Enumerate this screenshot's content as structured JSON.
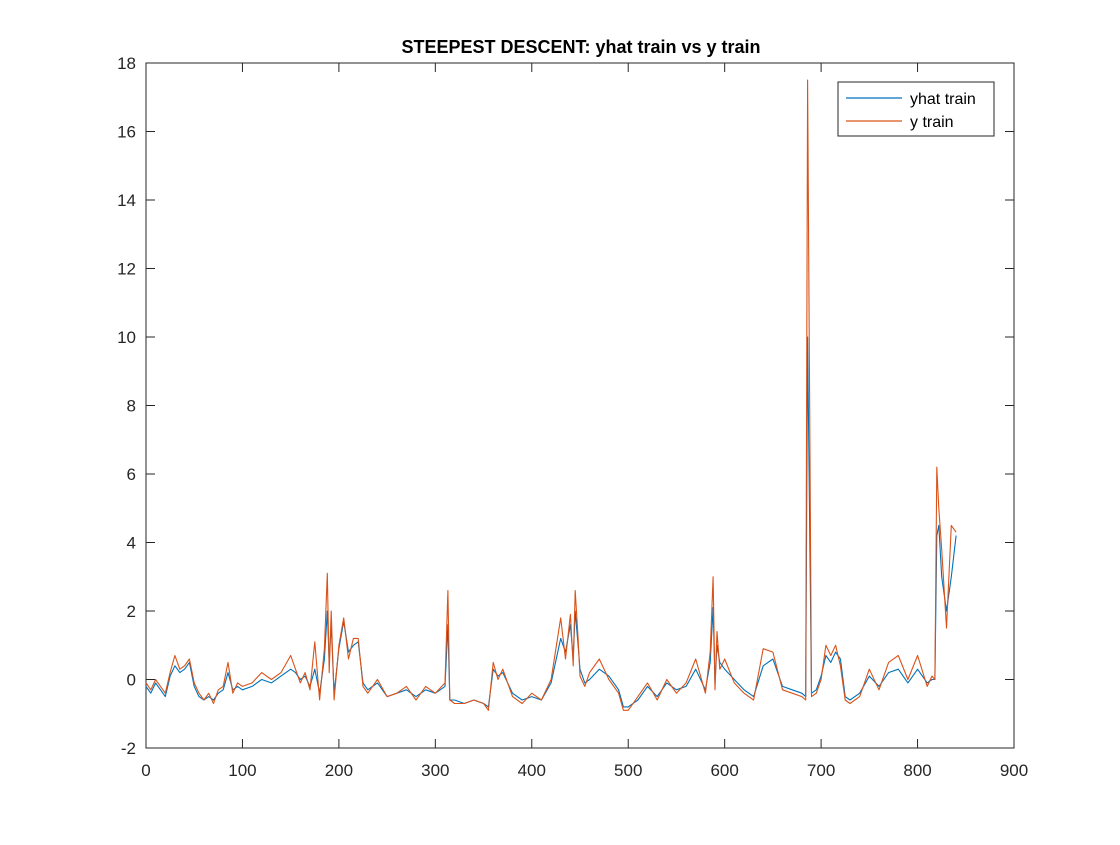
{
  "window": {
    "background": "#ffffff"
  },
  "chart_data": {
    "type": "line",
    "title": "STEEPEST DESCENT: yhat train vs y train",
    "xlabel": "",
    "ylabel": "",
    "xlim": [
      0,
      900
    ],
    "ylim": [
      -2,
      18
    ],
    "xticks": [
      0,
      100,
      200,
      300,
      400,
      500,
      600,
      700,
      800,
      900
    ],
    "yticks": [
      -2,
      0,
      2,
      4,
      6,
      8,
      10,
      12,
      14,
      16,
      18
    ],
    "grid": false,
    "legend_position": "top-right",
    "series": [
      {
        "name": "yhat train",
        "color": "#0072BD",
        "x": [
          0,
          5,
          10,
          15,
          20,
          25,
          30,
          35,
          40,
          45,
          50,
          55,
          60,
          65,
          70,
          75,
          80,
          85,
          90,
          95,
          100,
          110,
          120,
          130,
          140,
          150,
          155,
          160,
          165,
          170,
          175,
          180,
          185,
          188,
          190,
          192,
          195,
          200,
          205,
          210,
          215,
          220,
          225,
          230,
          240,
          250,
          260,
          270,
          280,
          290,
          300,
          310,
          313,
          315,
          320,
          330,
          340,
          350,
          355,
          360,
          365,
          370,
          380,
          390,
          400,
          410,
          420,
          430,
          435,
          440,
          443,
          445,
          448,
          450,
          455,
          460,
          470,
          480,
          490,
          495,
          500,
          510,
          520,
          530,
          540,
          550,
          560,
          570,
          580,
          585,
          588,
          590,
          592,
          595,
          600,
          610,
          620,
          630,
          640,
          650,
          660,
          670,
          680,
          684,
          686,
          690,
          695,
          700,
          705,
          710,
          715,
          720,
          725,
          730,
          740,
          750,
          760,
          770,
          780,
          790,
          800,
          810,
          815,
          818,
          820,
          822,
          825,
          830,
          835,
          840
        ],
        "y": [
          -0.2,
          -0.4,
          -0.1,
          -0.3,
          -0.5,
          0.1,
          0.4,
          0.2,
          0.3,
          0.5,
          -0.2,
          -0.5,
          -0.6,
          -0.5,
          -0.6,
          -0.4,
          -0.3,
          0.2,
          -0.3,
          -0.2,
          -0.3,
          -0.2,
          0.0,
          -0.1,
          0.1,
          0.3,
          0.2,
          0.0,
          0.1,
          -0.2,
          0.3,
          -0.4,
          0.6,
          2.0,
          0.5,
          1.6,
          -0.4,
          0.9,
          1.7,
          0.8,
          1.0,
          1.1,
          -0.1,
          -0.3,
          -0.1,
          -0.5,
          -0.4,
          -0.3,
          -0.5,
          -0.3,
          -0.4,
          -0.2,
          1.6,
          -0.6,
          -0.6,
          -0.7,
          -0.6,
          -0.7,
          -0.8,
          0.3,
          0.1,
          0.2,
          -0.4,
          -0.6,
          -0.5,
          -0.6,
          -0.1,
          1.2,
          0.8,
          1.6,
          0.6,
          2.0,
          1.0,
          0.3,
          -0.1,
          0.0,
          0.3,
          0.1,
          -0.3,
          -0.8,
          -0.8,
          -0.6,
          -0.2,
          -0.5,
          -0.1,
          -0.3,
          -0.2,
          0.3,
          -0.3,
          0.5,
          2.1,
          -0.1,
          1.0,
          0.5,
          0.3,
          0.0,
          -0.3,
          -0.5,
          0.4,
          0.6,
          -0.2,
          -0.3,
          -0.4,
          -0.5,
          10.0,
          -0.4,
          -0.3,
          0.1,
          0.7,
          0.5,
          0.8,
          0.6,
          -0.5,
          -0.6,
          -0.4,
          0.1,
          -0.2,
          0.2,
          0.3,
          -0.1,
          0.3,
          -0.1,
          0.0,
          0.0,
          4.2,
          4.5,
          3.0,
          2.0,
          3.0,
          4.2
        ]
      },
      {
        "name": "y train",
        "color": "#D95319",
        "x": [
          0,
          5,
          10,
          15,
          20,
          25,
          30,
          35,
          40,
          45,
          50,
          55,
          60,
          65,
          70,
          75,
          80,
          85,
          90,
          95,
          100,
          110,
          120,
          130,
          140,
          150,
          155,
          160,
          165,
          170,
          175,
          180,
          185,
          188,
          190,
          192,
          195,
          200,
          205,
          210,
          215,
          220,
          225,
          230,
          240,
          250,
          260,
          270,
          280,
          290,
          300,
          310,
          313,
          315,
          320,
          330,
          340,
          350,
          355,
          360,
          365,
          370,
          380,
          390,
          400,
          410,
          420,
          430,
          435,
          440,
          443,
          445,
          448,
          450,
          455,
          460,
          470,
          480,
          490,
          495,
          500,
          510,
          520,
          530,
          540,
          550,
          560,
          570,
          580,
          585,
          588,
          590,
          592,
          595,
          600,
          610,
          620,
          630,
          640,
          650,
          660,
          670,
          680,
          684,
          686,
          690,
          695,
          700,
          705,
          710,
          715,
          720,
          725,
          730,
          740,
          750,
          760,
          770,
          780,
          790,
          800,
          810,
          815,
          818,
          820,
          822,
          825,
          830,
          835,
          840
        ],
        "y": [
          -0.1,
          -0.3,
          0.0,
          -0.2,
          -0.4,
          0.2,
          0.7,
          0.3,
          0.4,
          0.6,
          -0.1,
          -0.4,
          -0.6,
          -0.4,
          -0.7,
          -0.3,
          -0.2,
          0.5,
          -0.4,
          -0.1,
          -0.2,
          -0.1,
          0.2,
          0.0,
          0.2,
          0.7,
          0.3,
          -0.1,
          0.2,
          -0.3,
          1.1,
          -0.6,
          0.9,
          3.1,
          0.2,
          2.0,
          -0.6,
          1.0,
          1.8,
          0.6,
          1.2,
          1.2,
          -0.2,
          -0.4,
          0.0,
          -0.5,
          -0.4,
          -0.2,
          -0.6,
          -0.2,
          -0.4,
          -0.1,
          2.6,
          -0.6,
          -0.7,
          -0.7,
          -0.6,
          -0.7,
          -0.9,
          0.5,
          0.0,
          0.3,
          -0.5,
          -0.7,
          -0.4,
          -0.6,
          0.0,
          1.8,
          0.6,
          1.9,
          0.4,
          2.6,
          1.2,
          0.1,
          -0.2,
          0.2,
          0.6,
          0.0,
          -0.4,
          -0.9,
          -0.9,
          -0.5,
          -0.1,
          -0.6,
          0.0,
          -0.4,
          -0.1,
          0.6,
          -0.4,
          0.8,
          3.0,
          -0.3,
          1.4,
          0.3,
          0.6,
          -0.1,
          -0.4,
          -0.6,
          0.9,
          0.8,
          -0.3,
          -0.4,
          -0.5,
          -0.6,
          17.5,
          -0.5,
          -0.4,
          0.0,
          1.0,
          0.7,
          1.0,
          0.4,
          -0.6,
          -0.7,
          -0.5,
          0.3,
          -0.3,
          0.5,
          0.7,
          0.0,
          0.7,
          -0.2,
          0.1,
          0.0,
          6.2,
          5.0,
          3.8,
          1.5,
          4.5,
          4.3
        ]
      }
    ]
  }
}
